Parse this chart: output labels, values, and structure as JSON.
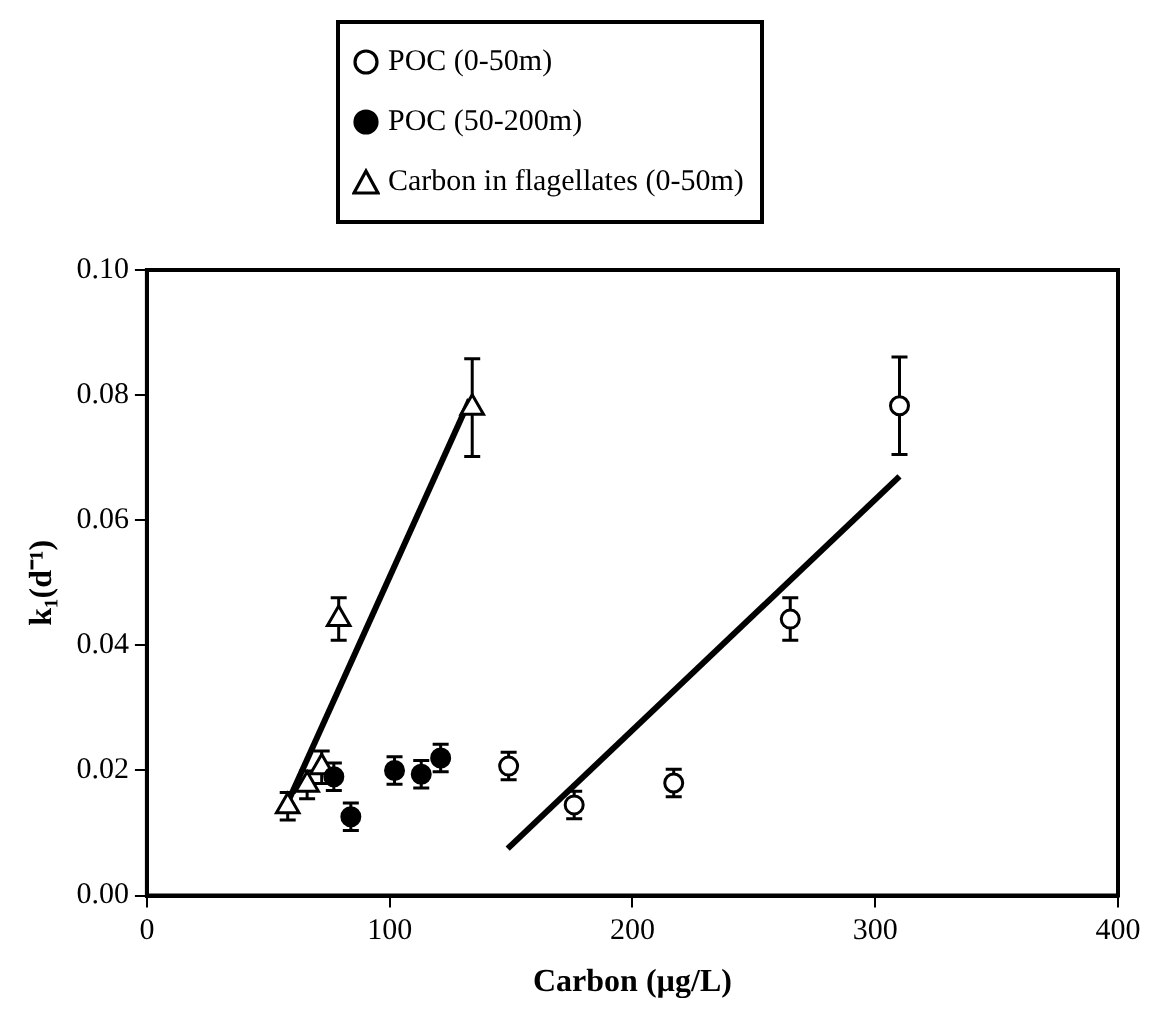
{
  "chart_data": {
    "type": "scatter",
    "xlabel": "Carbon (µg/L)",
    "ylabel": "k₁(d⁻¹)",
    "xlim": [
      0,
      400
    ],
    "xticks": [
      0,
      100,
      200,
      300,
      400
    ],
    "ylim": [
      0,
      0.1
    ],
    "yticks": [
      {
        "value": 0,
        "label": "0.00"
      },
      {
        "value": 0.02,
        "label": "0.02"
      },
      {
        "value": 0.04,
        "label": "0.04"
      },
      {
        "value": 0.06,
        "label": "0.06"
      },
      {
        "value": 0.08,
        "label": "0.08"
      },
      {
        "value": 0.1,
        "label": "0.10"
      }
    ],
    "grid": false,
    "legend": "top",
    "series": [
      {
        "name": "POC (0-50m)",
        "color": "#ffffff",
        "marker": "circle",
        "x": [
          149,
          176,
          217,
          265,
          310
        ],
        "values": [
          0.0207,
          0.0145,
          0.018,
          0.0442,
          0.0783
        ],
        "errors": [
          0.0022,
          0.0022,
          0.0022,
          0.0034,
          0.0078
        ]
      },
      {
        "name": "POC (50-200m)",
        "color": "#000000",
        "marker": "circle",
        "x": [
          77,
          84,
          102,
          113,
          121
        ],
        "values": [
          0.019,
          0.0126,
          0.02,
          0.0194,
          0.022
        ],
        "errors": [
          0.0022,
          0.0022,
          0.0022,
          0.0022,
          0.0022
        ]
      },
      {
        "name": "Carbon in flagellates (0-50m)",
        "color": "#ffffff",
        "marker": "triangle",
        "x": [
          58,
          66,
          72,
          79,
          134
        ],
        "values": [
          0.0143,
          0.0177,
          0.0205,
          0.0442,
          0.078
        ],
        "errors": [
          0.0022,
          0.0022,
          0.0026,
          0.0034,
          0.0078
        ]
      },
      {
        "type": "line",
        "color": "#000000",
        "marker": "none",
        "x": [
          148.6,
          310
        ],
        "values": [
          0.0075,
          0.067
        ]
      },
      {
        "type": "line",
        "color": "#000000",
        "marker": "none",
        "x": [
          58.6,
          133
        ],
        "values": [
          0.0154,
          0.0793
        ]
      }
    ]
  }
}
